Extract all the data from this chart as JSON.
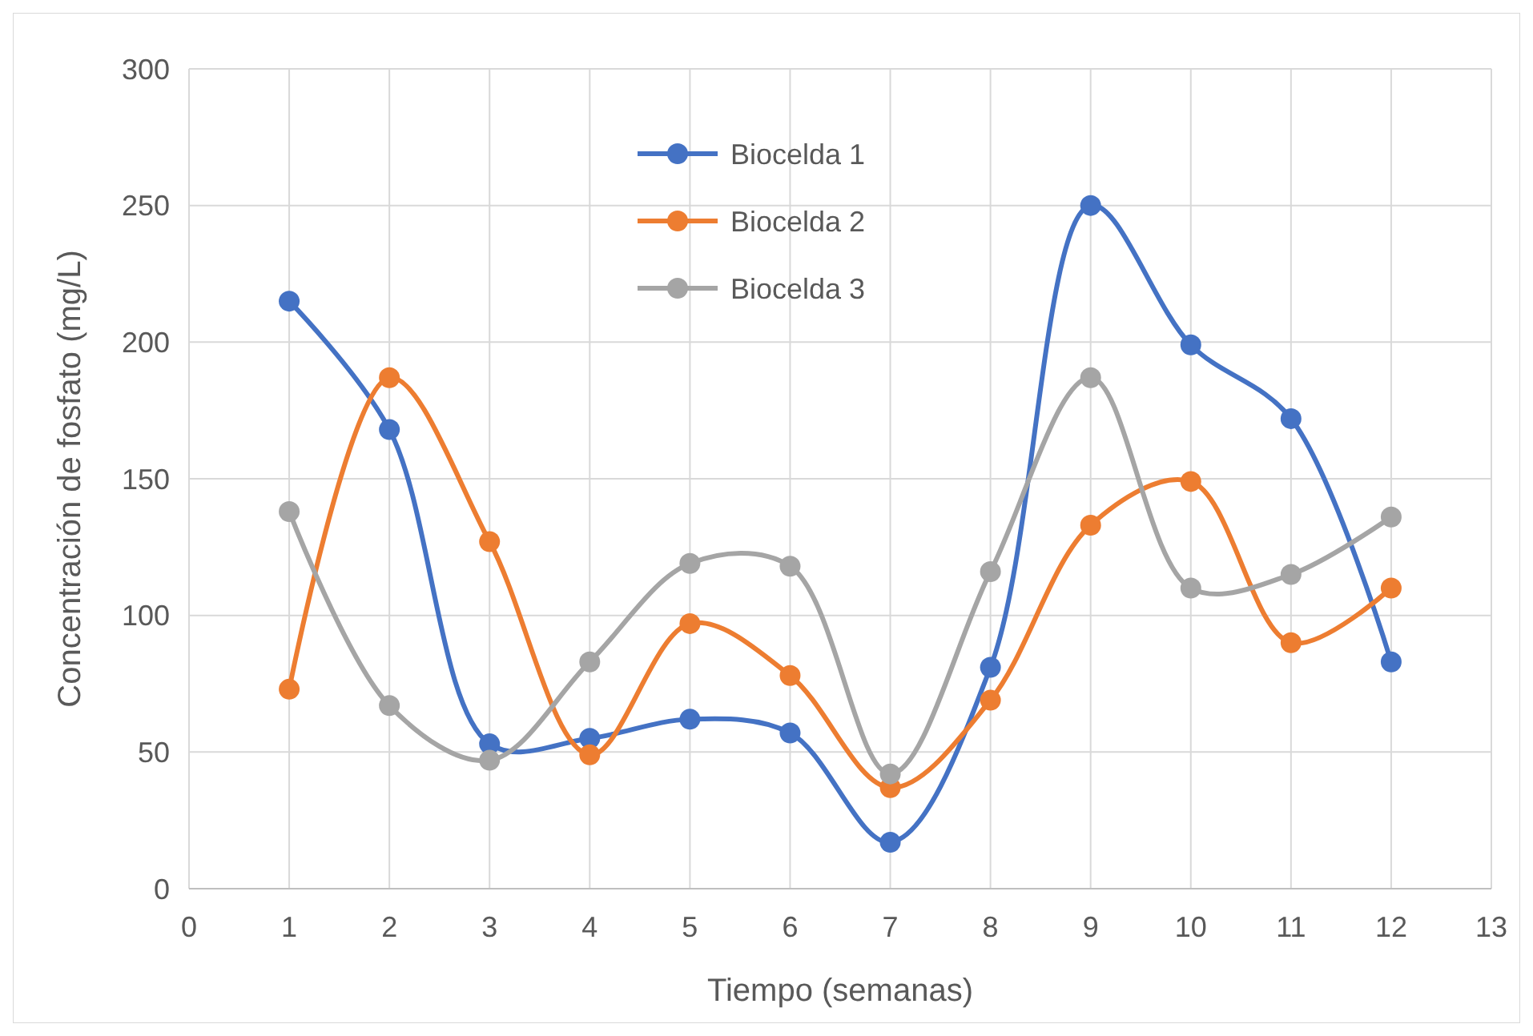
{
  "chart_data": {
    "type": "line",
    "xlabel": "Tiempo (semanas)",
    "ylabel": "Concentración de fosfato (mg/L)",
    "x": [
      1,
      2,
      3,
      4,
      5,
      6,
      7,
      8,
      9,
      10,
      11,
      12
    ],
    "series": [
      {
        "name": "Biocelda 1",
        "color": "#4472c4",
        "values": [
          215,
          168,
          53,
          55,
          62,
          57,
          17,
          81,
          250,
          199,
          172,
          83
        ]
      },
      {
        "name": "Biocelda 2",
        "color": "#ed7d31",
        "values": [
          73,
          187,
          127,
          49,
          97,
          78,
          37,
          69,
          133,
          149,
          90,
          110
        ]
      },
      {
        "name": "Biocelda 3",
        "color": "#a5a5a5",
        "values": [
          138,
          67,
          47,
          83,
          119,
          118,
          42,
          116,
          187,
          110,
          115,
          136
        ]
      }
    ],
    "xlim": [
      0,
      13
    ],
    "xticks": [
      0,
      1,
      2,
      3,
      4,
      5,
      6,
      7,
      8,
      9,
      10,
      11,
      12,
      13
    ],
    "ylim": [
      0,
      300
    ],
    "yticks": [
      0,
      50,
      100,
      150,
      200,
      250,
      300
    ],
    "grid": true,
    "legend": "top",
    "marker": "circle",
    "line_style": "solid"
  }
}
